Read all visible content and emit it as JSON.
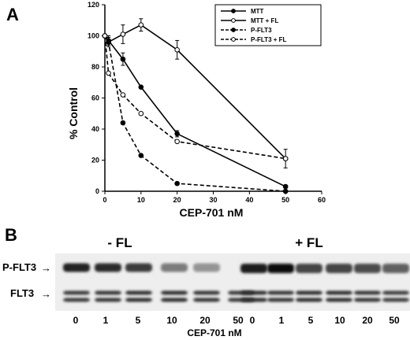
{
  "panel_a_label": "A",
  "panel_b_label": "B",
  "chart_data": {
    "type": "line",
    "xlabel": "CEP-701 nM",
    "ylabel": "% Control",
    "xlim": [
      0,
      60
    ],
    "ylim": [
      0,
      120
    ],
    "xticks": [
      0,
      10,
      20,
      30,
      40,
      50,
      60
    ],
    "yticks": [
      0,
      20,
      40,
      60,
      80,
      100,
      120
    ],
    "grid": false,
    "legend_position": "top-right",
    "series": [
      {
        "name": "MTT",
        "style": "solid",
        "marker": "filled",
        "x": [
          0,
          1,
          5,
          10,
          20,
          50
        ],
        "y": [
          100,
          97,
          85,
          67,
          37,
          3
        ],
        "err": [
          0,
          3,
          4,
          0,
          2,
          1
        ]
      },
      {
        "name": "MTT + FL",
        "style": "solid",
        "marker": "open",
        "x": [
          0,
          1,
          5,
          10,
          20,
          50
        ],
        "y": [
          100,
          96,
          101,
          107,
          91,
          21
        ],
        "err": [
          0,
          3,
          6,
          4,
          6,
          6
        ]
      },
      {
        "name": "P-FLT3",
        "style": "dashed",
        "marker": "filled",
        "x": [
          0,
          1,
          5,
          10,
          20,
          50
        ],
        "y": [
          100,
          96,
          44,
          23,
          5,
          0
        ],
        "err": [
          0,
          0,
          0,
          0,
          0,
          0
        ]
      },
      {
        "name": "P-FLT3 + FL",
        "style": "dashed",
        "marker": "open",
        "x": [
          0,
          1,
          5,
          10,
          20,
          50
        ],
        "y": [
          100,
          76,
          62,
          50,
          32,
          21
        ],
        "err": [
          0,
          0,
          0,
          0,
          0,
          0
        ]
      }
    ]
  },
  "blot": {
    "left_condition": "- FL",
    "right_condition": "+ FL",
    "row_labels": [
      "P-FLT3",
      "FLT3"
    ],
    "arrow": "→",
    "doses": [
      "0",
      "1",
      "5",
      "10",
      "20",
      "50"
    ],
    "xlabel": "CEP-701 nM",
    "pflt3_left": [
      0.92,
      0.88,
      0.8,
      0.5,
      0.38,
      0.0
    ],
    "pflt3_right": [
      0.95,
      1.0,
      0.75,
      0.75,
      0.72,
      0.62
    ],
    "flt3_left": [
      0.8,
      0.82,
      0.85,
      0.85,
      0.82,
      0.8
    ],
    "flt3_right": [
      0.85,
      0.82,
      0.85,
      0.85,
      0.82,
      0.78
    ]
  }
}
